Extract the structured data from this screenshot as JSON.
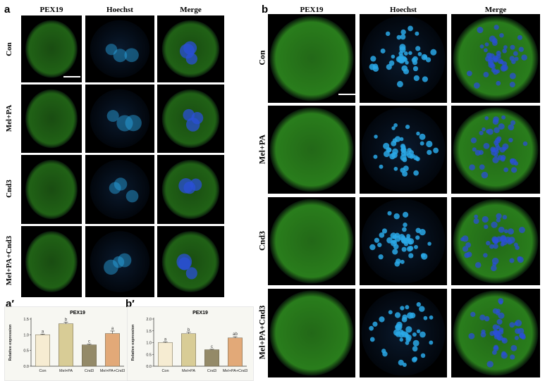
{
  "panels": {
    "a": {
      "letter": "a",
      "columns": [
        "PEX19",
        "Hoechst",
        "Merge"
      ],
      "rows": [
        "Con",
        "Mel+PA",
        "Cnd3",
        "Mel+PA+Cnd3"
      ]
    },
    "b": {
      "letter": "b",
      "columns": [
        "PEX19",
        "Hoechst",
        "Merge"
      ],
      "rows": [
        "Con",
        "Mel+PA",
        "Cnd3",
        "Mel+PA+Cnd3"
      ]
    },
    "a_prime": {
      "letter": "a′"
    },
    "b_prime": {
      "letter": "b′"
    }
  },
  "colors": {
    "pex19": "#2e8b1f",
    "hoechst": "#2aa8e6",
    "merge_nucleus": "#2a4fd6",
    "bar_con": "#f6ecd2",
    "bar_melpa": "#d8cc96",
    "bar_cnd3": "#948a68",
    "bar_combo": "#e2a978"
  },
  "chart_data": [
    {
      "type": "bar",
      "title": "PEX19",
      "ylabel": "Relative expression",
      "xlabel": "",
      "categories": [
        "Con",
        "Mel+PA",
        "Cnd3",
        "Mel+PA+Cnd3"
      ],
      "values": [
        1.0,
        1.35,
        0.68,
        1.04
      ],
      "errors": [
        0.02,
        0.05,
        0.02,
        0.08
      ],
      "letters": [
        "a",
        "b",
        "c",
        "a"
      ],
      "ylim": [
        0,
        1.5
      ],
      "yticks": [
        "0.0",
        "0.5",
        "1.0",
        "1.5"
      ],
      "ytick_values": [
        0,
        0.5,
        1.0,
        1.5
      ],
      "grid": false
    },
    {
      "type": "bar",
      "title": "PEX19",
      "ylabel": "Relative expression",
      "xlabel": "",
      "categories": [
        "Con",
        "Mel+PA",
        "Cnd3",
        "Mel+PA+Cnd3"
      ],
      "values": [
        1.0,
        1.38,
        0.7,
        1.2
      ],
      "errors": [
        0.03,
        0.06,
        0.02,
        0.05
      ],
      "letters": [
        "a",
        "b",
        "c",
        "ab"
      ],
      "ylim": [
        0,
        2.0
      ],
      "yticks": [
        "0.0",
        "0.5",
        "1.0",
        "1.5",
        "2.0"
      ],
      "ytick_values": [
        0,
        0.5,
        1.0,
        1.5,
        2.0
      ],
      "grid": false
    }
  ]
}
